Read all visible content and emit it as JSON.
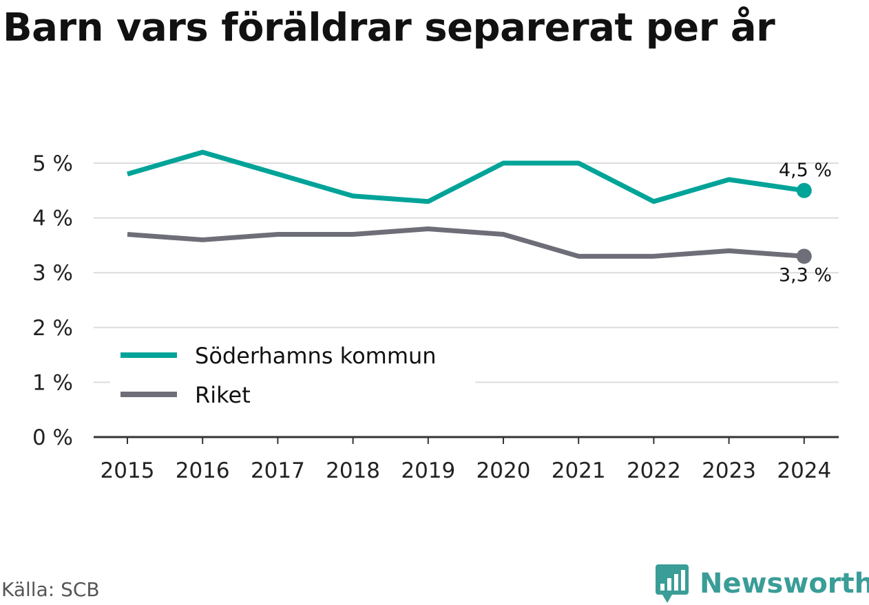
{
  "title": "Barn vars föräldrar separerat per år",
  "source": "Källa: SCB",
  "brand": {
    "name": "Newsworthy",
    "icon": "newsworthy-logo-icon",
    "color": "#3a9d97"
  },
  "chart_data": {
    "type": "line",
    "x": [
      "2015",
      "2016",
      "2017",
      "2018",
      "2019",
      "2020",
      "2021",
      "2022",
      "2023",
      "2024"
    ],
    "series": [
      {
        "name": "Söderhamns kommun",
        "color": "#00a398",
        "values": [
          4.8,
          5.2,
          4.8,
          4.4,
          4.3,
          5.0,
          5.0,
          4.3,
          4.7,
          4.5
        ],
        "end_label": "4,5 %"
      },
      {
        "name": "Riket",
        "color": "#6e6e78",
        "values": [
          3.7,
          3.6,
          3.7,
          3.7,
          3.8,
          3.7,
          3.3,
          3.3,
          3.4,
          3.3
        ],
        "end_label": "3,3 %"
      }
    ],
    "yticks": [
      0,
      1,
      2,
      3,
      4,
      5
    ],
    "ytick_labels": [
      "0 %",
      "1 %",
      "2 %",
      "3 %",
      "4 %",
      "5 %"
    ],
    "ylim": [
      0,
      5
    ],
    "grid": true,
    "legend_position": "bottom-left"
  }
}
